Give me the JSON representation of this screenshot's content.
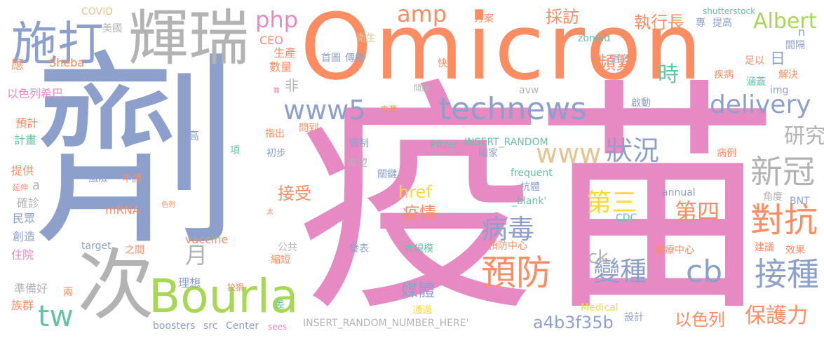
{
  "colors": {
    "blue": "#8da0cb",
    "pink": "#e78ac3",
    "orange": "#fc8d62",
    "green": "#a6d854",
    "teal": "#66c2a5",
    "yellow": "#e5c494",
    "gold": "#ffd92f",
    "gray": "#b3b3b3"
  },
  "words": [
    {
      "text": "劑"
    },
    {
      "text": "疫苗"
    },
    {
      "text": "Omicron"
    },
    {
      "text": "次"
    },
    {
      "text": "輝瑞"
    },
    {
      "text": "施打"
    },
    {
      "text": "Bourla"
    },
    {
      "text": "technews"
    },
    {
      "text": "www5"
    },
    {
      "text": "delivery"
    },
    {
      "text": "www"
    },
    {
      "text": "預防"
    },
    {
      "text": "對抗"
    },
    {
      "text": "接種"
    },
    {
      "text": "新冠"
    },
    {
      "text": "變種"
    },
    {
      "text": "病毒"
    },
    {
      "text": "狀況"
    },
    {
      "text": "第三"
    },
    {
      "text": "第四"
    },
    {
      "text": "cb"
    },
    {
      "text": "tw"
    },
    {
      "text": "php"
    },
    {
      "text": "amp"
    },
    {
      "text": "研究"
    },
    {
      "text": "保護力"
    },
    {
      "text": "時"
    },
    {
      "text": "頻繁"
    },
    {
      "text": "執行長"
    },
    {
      "text": "採訪"
    },
    {
      "text": "Albert"
    },
    {
      "text": "月"
    },
    {
      "text": "接受"
    },
    {
      "text": "疫情"
    },
    {
      "text": "href"
    },
    {
      "text": "媒體"
    },
    {
      "text": "ck"
    },
    {
      "text": "以色列"
    },
    {
      "text": "a4b3f35b"
    },
    {
      "text": "非"
    },
    {
      "text": "日"
    },
    {
      "text": "COVID"
    },
    {
      "text": "美國"
    },
    {
      "text": "CEO"
    },
    {
      "text": "生產"
    },
    {
      "text": "數量"
    },
    {
      "text": "應"
    },
    {
      "text": "Sheba"
    },
    {
      "text": "以色列希巴"
    },
    {
      "text": "預計"
    },
    {
      "text": "計畫"
    },
    {
      "text": "提供"
    },
    {
      "text": "延伸"
    },
    {
      "text": "a"
    },
    {
      "text": "確診"
    },
    {
      "text": "民眾"
    },
    {
      "text": "創造"
    },
    {
      "text": "住院"
    },
    {
      "text": "準備好"
    },
    {
      "text": "族群"
    },
    {
      "text": "兩"
    },
    {
      "text": "boosters"
    },
    {
      "text": "src"
    },
    {
      "text": "Center"
    },
    {
      "text": "sees"
    },
    {
      "text": "INSERT_RANDOM_NUMBER_HERE'"
    },
    {
      "text": "設計"
    },
    {
      "text": "Medical"
    },
    {
      "text": "通過"
    },
    {
      "text": "差"
    },
    {
      "text": "狡猾"
    },
    {
      "text": "理想"
    },
    {
      "text": "縮短"
    },
    {
      "text": "公共"
    },
    {
      "text": "vaccine"
    },
    {
      "text": "target"
    },
    {
      "text": "之間"
    },
    {
      "text": "mRNA"
    },
    {
      "text": "色列"
    },
    {
      "text": "太"
    },
    {
      "text": "風險"
    },
    {
      "text": "申請"
    },
    {
      "text": "項"
    },
    {
      "text": "高"
    },
    {
      "text": "指出"
    },
    {
      "text": "初步"
    },
    {
      "text": "問到"
    },
    {
      "text": "管制"
    },
    {
      "text": "希望"
    },
    {
      "text": "關鍵"
    },
    {
      "text": "Pfizer"
    },
    {
      "text": "INSERT_RANDOM"
    },
    {
      "text": "國家"
    },
    {
      "text": "frequent"
    },
    {
      "text": "抗體"
    },
    {
      "text": "_blank'"
    },
    {
      "text": "發表"
    },
    {
      "text": "大規模"
    },
    {
      "text": "預防中心"
    },
    {
      "text": "醫療中心"
    },
    {
      "text": "annual"
    },
    {
      "text": "CDC"
    },
    {
      "text": "角度"
    },
    {
      "text": "BNT"
    },
    {
      "text": "建議"
    },
    {
      "text": "效果"
    },
    {
      "text": "病例"
    },
    {
      "text": "img"
    },
    {
      "text": "解決"
    },
    {
      "text": "涵蓋"
    },
    {
      "text": "足以"
    },
    {
      "text": "疾病"
    },
    {
      "text": "間隔"
    },
    {
      "text": "n"
    },
    {
      "text": "專"
    },
    {
      "text": "提高"
    },
    {
      "text": "shutterstock"
    },
    {
      "text": "zoneid"
    },
    {
      "text": "方案"
    },
    {
      "text": "衛生"
    },
    {
      "text": "首圖"
    },
    {
      "text": "傳播"
    },
    {
      "text": "快"
    },
    {
      "text": "更多"
    },
    {
      "text": "閱讀"
    },
    {
      "text": "avw"
    },
    {
      "text": "啟動"
    },
    {
      "text": "來源"
    },
    {
      "text": "難"
    }
  ]
}
